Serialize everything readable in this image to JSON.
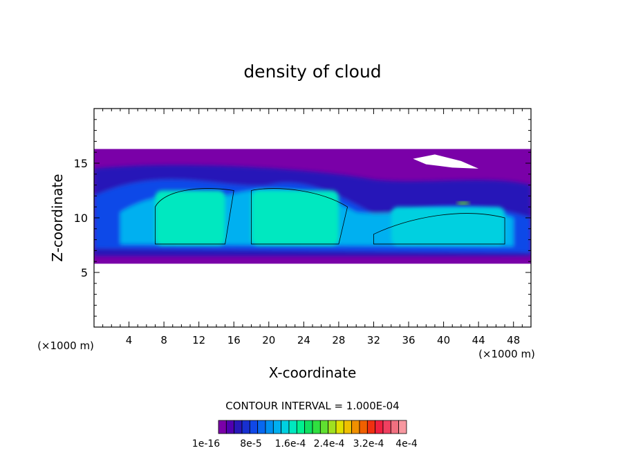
{
  "chart_data": {
    "type": "heatmap",
    "title": "density of cloud",
    "xlabel": "X-coordinate",
    "ylabel": "Z-coordinate",
    "x_unit": "(×1000 m)",
    "z_unit": "(×1000 m)",
    "xlim": [
      0,
      50
    ],
    "ylim": [
      0,
      20
    ],
    "x_ticks": [
      4,
      8,
      12,
      16,
      20,
      24,
      28,
      32,
      36,
      40,
      44,
      48
    ],
    "y_ticks": [
      5,
      10,
      15
    ],
    "contour_interval_text": "CONTOUR INTERVAL = 1.000E-04",
    "colorbar": {
      "labels": [
        "1e-16",
        "8e-5",
        "1.6e-4",
        "2.4e-4",
        "3.2e-4",
        "4e-4"
      ],
      "colors": [
        "#7a00a8",
        "#5000b0",
        "#2818b8",
        "#1830d0",
        "#1048e8",
        "#0868f0",
        "#0090f0",
        "#00b0f0",
        "#00d0e0",
        "#00e8c0",
        "#00f090",
        "#10e060",
        "#30e040",
        "#60e030",
        "#a0e020",
        "#e0e000",
        "#f0c000",
        "#f09000",
        "#f06000",
        "#f03010",
        "#f02040",
        "#f04060",
        "#f07080",
        "#f898a0"
      ]
    },
    "cloud_layer": {
      "z_bottom": 5.8,
      "z_top": 16.3,
      "core_regions": [
        {
          "x_range": [
            7,
            15
          ],
          "z_range": [
            7.5,
            12.5
          ],
          "density": "1.6e-4"
        },
        {
          "x_range": [
            18,
            28
          ],
          "z_range": [
            7.5,
            12.5
          ],
          "density": "1.6e-4"
        },
        {
          "x_range": [
            34,
            47
          ],
          "z_range": [
            7.5,
            11
          ],
          "density": "1.2e-4"
        },
        {
          "x_range": [
            41.5,
            43
          ],
          "z_range": [
            11.2,
            11.5
          ],
          "density": "2.4e-4"
        }
      ]
    }
  }
}
